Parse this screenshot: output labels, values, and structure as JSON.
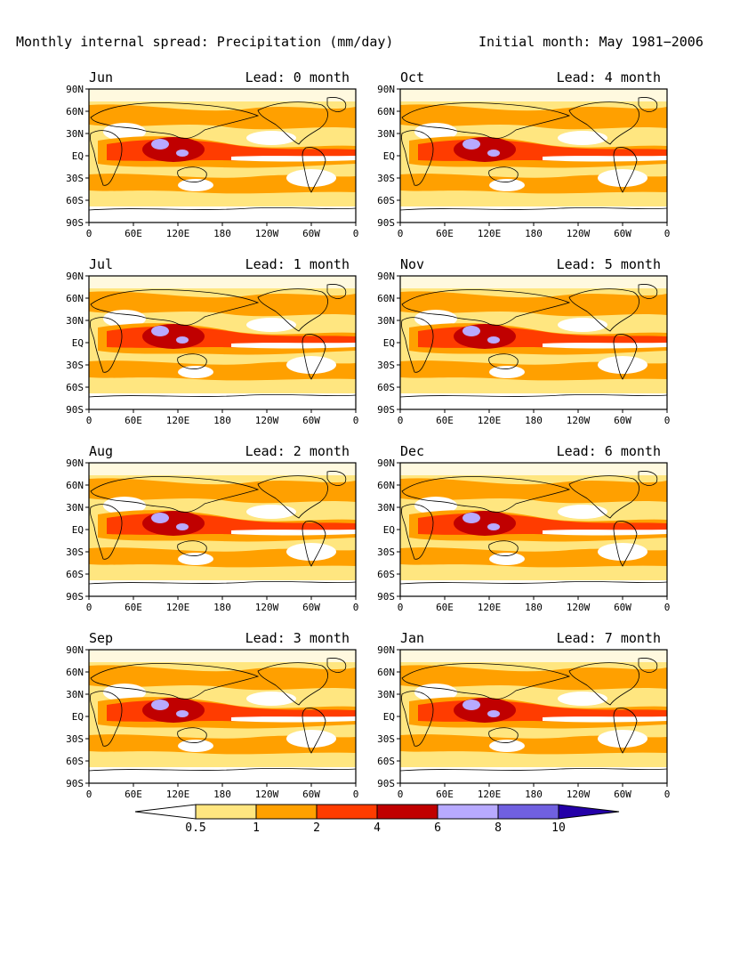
{
  "figure": {
    "title_left": "Monthly internal spread: Precipitation (mm/day)",
    "title_right": "Initial month: May 1981−2006"
  },
  "y_ticks": [
    "90N",
    "60N",
    "30N",
    "EQ",
    "30S",
    "60S",
    "90S"
  ],
  "x_ticks": [
    "0",
    "60E",
    "120E",
    "180",
    "120W",
    "60W",
    "0"
  ],
  "panels": [
    {
      "month": "Jun",
      "lead": "Lead: 0 month"
    },
    {
      "month": "Oct",
      "lead": "Lead: 4 month"
    },
    {
      "month": "Jul",
      "lead": "Lead: 1 month"
    },
    {
      "month": "Nov",
      "lead": "Lead: 5 month"
    },
    {
      "month": "Aug",
      "lead": "Lead: 2 month"
    },
    {
      "month": "Dec",
      "lead": "Lead: 6 month"
    },
    {
      "month": "Sep",
      "lead": "Lead: 3 month"
    },
    {
      "month": "Jan",
      "lead": "Lead: 7 month"
    }
  ],
  "colorbar": {
    "labels": [
      "0.5",
      "1",
      "2",
      "4",
      "6",
      "8",
      "10"
    ],
    "colors": [
      "#ffffff",
      "#ffe680",
      "#ffa000",
      "#ff3c00",
      "#c00000",
      "#b8aaff",
      "#7060e0",
      "#2400a8"
    ]
  },
  "legend_colors": {
    "land_outline": "#000000"
  }
}
